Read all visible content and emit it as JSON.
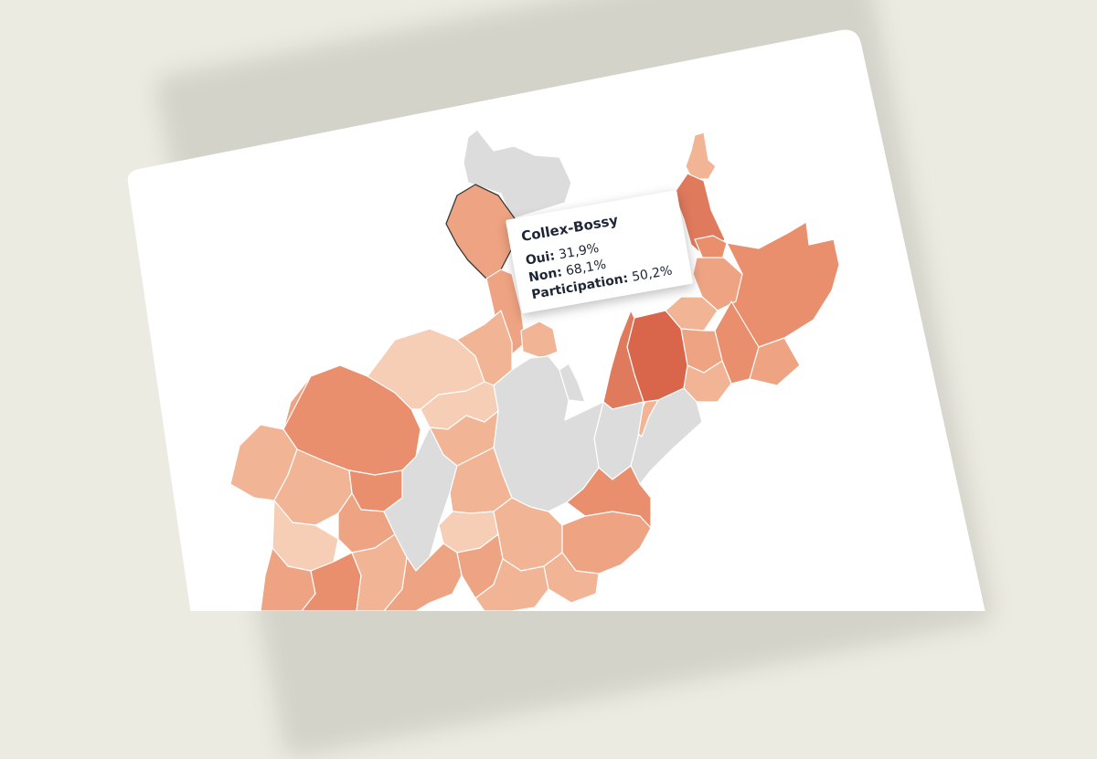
{
  "tooltip": {
    "title": "Collex-Bossy",
    "rows": [
      {
        "label": "Oui:",
        "value": "31,9%"
      },
      {
        "label": "Non:",
        "value": "68,1%"
      },
      {
        "label": "Participation:",
        "value": "50,2%"
      }
    ]
  },
  "colors": {
    "background": "#ecebe1",
    "card": "#ffffff",
    "no_data": "#dcdcdc",
    "scale": [
      "#f6cdb5",
      "#f1b494",
      "#eea382",
      "#e98f6d",
      "#e07a5c",
      "#d9654a"
    ],
    "region_border": "#ffffff",
    "highlight_border": "#3a3a3a"
  },
  "legend": {
    "no_data_label": ""
  },
  "highlighted_region": "Collex-Bossy"
}
